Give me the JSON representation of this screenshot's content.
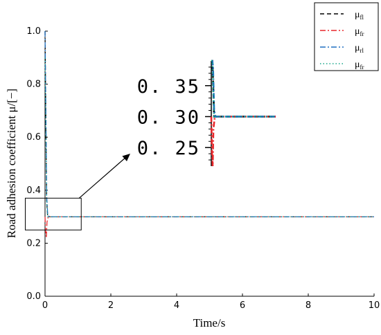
{
  "chart_data": {
    "type": "line",
    "title": "",
    "xlabel": "Time/s",
    "ylabel": "Road adhesion coefficient μ/[−]",
    "xlim": [
      0,
      10
    ],
    "ylim": [
      0,
      1.0
    ],
    "x_ticks": [
      "0",
      "2",
      "4",
      "6",
      "8",
      "10"
    ],
    "y_ticks": [
      "0.0",
      "0.2",
      "0.4",
      "0.6",
      "0.8",
      "1.0"
    ],
    "grid": false,
    "legend_position": "top-right",
    "series": [
      {
        "name": "μ",
        "subscript": "fl",
        "color": "#000000",
        "dash": "6,4",
        "x": [
          0,
          0.03,
          0.05,
          0.08,
          0.12,
          0.2,
          10
        ],
        "y": [
          1.0,
          0.6,
          0.36,
          0.3,
          0.3,
          0.3,
          0.3
        ]
      },
      {
        "name": "μ",
        "subscript": "fr",
        "color": "#e8262a",
        "dash": "8,3,2,3",
        "x": [
          0,
          0.02,
          0.04,
          0.06,
          0.1,
          0.2,
          10
        ],
        "y": [
          0.3,
          0.24,
          0.22,
          0.28,
          0.3,
          0.3,
          0.3
        ]
      },
      {
        "name": "μ",
        "subscript": "rl",
        "color": "#1f6fc0",
        "dash": "8,3,2,3",
        "x": [
          0,
          0.03,
          0.05,
          0.08,
          0.12,
          0.2,
          10
        ],
        "y": [
          1.0,
          0.65,
          0.38,
          0.31,
          0.3,
          0.3,
          0.3
        ]
      },
      {
        "name": "μ",
        "subscript": "fr",
        "color": "#17a589",
        "dash": "1.5,3",
        "x": [
          0,
          0.03,
          0.05,
          0.08,
          0.12,
          0.2,
          10
        ],
        "y": [
          0.9,
          0.55,
          0.35,
          0.3,
          0.3,
          0.3,
          0.3
        ]
      }
    ],
    "zoom_region": {
      "x": [
        -0.6,
        1.1
      ],
      "y": [
        0.25,
        0.37
      ]
    },
    "inset": {
      "y_ticks": [
        "0.35",
        "0.30",
        "0.25"
      ],
      "ylim": [
        0.22,
        0.39
      ],
      "xlim": [
        0,
        1.0
      ]
    }
  }
}
